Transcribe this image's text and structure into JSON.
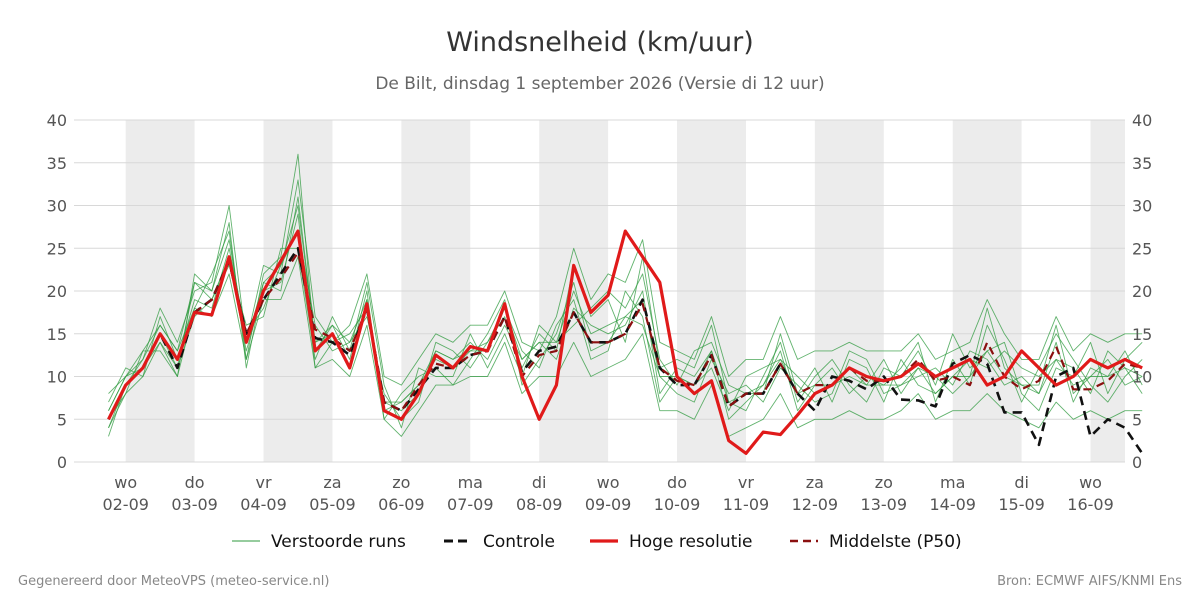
{
  "title": "Windsnelheid (km/uur)",
  "subtitle": "De Bilt, dinsdag  1 september 2026 (Versie di 12 uur)",
  "footer": {
    "left": "Gegenereerd door MeteoVPS (meteo-service.nl)",
    "right": "Bron: ECMWF AIFS/KNMI Ens"
  },
  "colors": {
    "ensemble": "#2e9a3e",
    "control": "#111111",
    "high_res": "#e01a1a",
    "median": "#8b1010",
    "band": "#ececec",
    "grid": "#d8d8d8"
  },
  "chart_data": {
    "type": "line",
    "ylim": [
      0,
      40
    ],
    "yticks": [
      0,
      5,
      10,
      15,
      20,
      25,
      30,
      35,
      40
    ],
    "xlim": [
      -0.75,
      14.5
    ],
    "day_labels": [
      {
        "day": "wo",
        "date": "02-09",
        "x": 0
      },
      {
        "day": "do",
        "date": "03-09",
        "x": 1
      },
      {
        "day": "vr",
        "date": "04-09",
        "x": 2
      },
      {
        "day": "za",
        "date": "05-09",
        "x": 3
      },
      {
        "day": "zo",
        "date": "06-09",
        "x": 4
      },
      {
        "day": "ma",
        "date": "07-09",
        "x": 5
      },
      {
        "day": "di",
        "date": "08-09",
        "x": 6
      },
      {
        "day": "wo",
        "date": "09-09",
        "x": 7
      },
      {
        "day": "do",
        "date": "10-09",
        "x": 8
      },
      {
        "day": "vr",
        "date": "11-09",
        "x": 9
      },
      {
        "day": "za",
        "date": "12-09",
        "x": 10
      },
      {
        "day": "zo",
        "date": "13-09",
        "x": 11
      },
      {
        "day": "ma",
        "date": "14-09",
        "x": 12
      },
      {
        "day": "di",
        "date": "15-09",
        "x": 13
      },
      {
        "day": "wo",
        "date": "16-09",
        "x": 14
      }
    ],
    "shaded_days": [
      [
        0,
        1
      ],
      [
        2,
        3
      ],
      [
        4,
        5
      ],
      [
        6,
        7
      ],
      [
        8,
        9
      ],
      [
        10,
        11
      ],
      [
        12,
        13
      ],
      [
        14,
        14.5
      ]
    ],
    "legend": [
      {
        "key": "ensemble",
        "label": "Verstoorde runs"
      },
      {
        "key": "control",
        "label": "Controle"
      },
      {
        "key": "high_res",
        "label": "Hoge resolutie"
      },
      {
        "key": "median",
        "label": "Middelste (P50)"
      }
    ],
    "series": [
      {
        "key": "high_res",
        "name": "Hoge resolutie",
        "x_start": -0.25,
        "x_step": 0.25,
        "values": [
          5,
          9,
          11,
          15,
          12,
          17.5,
          17.2,
          24,
          14,
          20,
          23.5,
          27,
          13,
          15,
          11,
          18.5,
          6,
          5,
          8,
          12.5,
          11,
          13.5,
          13,
          18.5,
          10,
          5,
          9,
          23,
          17.5,
          19.5,
          27,
          24,
          21,
          10,
          8,
          9.5,
          2.5,
          1,
          3.5,
          3.2,
          5.5,
          8,
          9,
          11,
          10,
          9.5,
          10,
          11.5,
          10,
          11,
          12,
          9,
          10,
          13,
          11,
          9,
          10,
          12,
          11,
          12,
          11
        ]
      },
      {
        "key": "control",
        "name": "Controle",
        "x_start": -0.25,
        "x_step": 0.25,
        "values": [
          5,
          9,
          11,
          15,
          11,
          17.5,
          19,
          23.5,
          15,
          19,
          22,
          25,
          14.5,
          14,
          12.5,
          18,
          7,
          6,
          8.5,
          11,
          11,
          12.5,
          13,
          17,
          10.5,
          13,
          13.5,
          17.5,
          14,
          14,
          15,
          19,
          11,
          9,
          9,
          12.5,
          6.5,
          8,
          8,
          11.5,
          8,
          6,
          10,
          9.5,
          8.5,
          10,
          7.3,
          7.2,
          6.5,
          11.5,
          12.5,
          11.5,
          5.8,
          5.8,
          2,
          10,
          11,
          3,
          5,
          4,
          1
        ]
      },
      {
        "key": "median",
        "name": "Middelste (P50)",
        "x_start": -0.25,
        "x_step": 0.25,
        "values": [
          5,
          9,
          11,
          15,
          12,
          17.5,
          19,
          23.5,
          15,
          19,
          21.5,
          24.5,
          15.5,
          14.5,
          13,
          18,
          7,
          6,
          9,
          11.5,
          11,
          12.5,
          13,
          17,
          10,
          12.5,
          13,
          17.5,
          14,
          14,
          15,
          18.5,
          11,
          9.5,
          9,
          12.5,
          6.5,
          8,
          8,
          11.5,
          8,
          9,
          9,
          11,
          9.5,
          9.5,
          10,
          12,
          9.5,
          10,
          9,
          14,
          10,
          8.5,
          9.5,
          13.5,
          8.5,
          8.5,
          9.5,
          11.5,
          11
        ]
      }
    ],
    "ensemble": {
      "name": "Verstoorde runs",
      "x_start": -0.25,
      "x_step": 0.25,
      "members": [
        [
          6,
          10,
          11,
          14,
          11,
          21,
          19,
          24,
          13,
          20,
          21,
          29,
          11,
          14,
          15,
          18,
          7,
          6,
          8,
          13,
          12,
          14,
          12,
          16,
          12,
          14,
          12,
          18,
          16,
          15,
          16,
          20,
          8,
          11,
          10,
          13,
          5,
          7,
          9,
          13,
          6,
          9,
          11,
          8,
          10,
          9,
          11,
          14,
          7,
          12,
          9,
          16,
          12,
          7,
          11,
          15,
          12,
          9,
          7,
          10,
          12
        ],
        [
          4,
          9,
          12,
          16,
          13,
          18,
          22,
          27,
          12,
          22,
          24,
          36,
          13,
          16,
          12,
          20,
          5,
          8,
          10,
          11,
          9,
          12,
          15,
          19,
          9,
          12,
          15,
          21,
          13,
          14,
          17,
          16,
          10,
          8,
          7,
          12,
          8,
          9,
          7,
          11,
          9,
          7,
          8,
          13,
          12,
          8,
          9,
          10,
          11,
          9,
          13,
          12,
          9,
          10,
          8,
          14,
          7,
          11,
          10,
          13,
          9
        ],
        [
          7,
          11,
          10,
          17,
          12,
          19,
          18,
          25,
          15,
          18,
          23,
          27,
          16,
          13,
          14,
          17,
          8,
          5,
          7,
          14,
          13,
          11,
          14,
          17,
          11,
          15,
          13,
          23,
          17,
          19,
          14,
          24,
          11,
          12,
          11,
          16,
          7,
          6,
          10,
          14,
          7,
          10,
          12,
          9,
          7,
          11,
          10,
          13,
          9,
          15,
          11,
          13,
          14,
          8,
          6,
          11,
          10,
          14,
          8,
          12,
          14
        ],
        [
          5,
          8,
          13,
          13,
          10,
          22,
          20,
          28,
          11,
          21,
          20,
          31,
          14,
          15,
          11,
          19,
          6,
          7,
          9,
          12,
          11,
          13,
          13,
          18,
          13,
          11,
          16,
          19,
          12,
          13,
          20,
          17,
          7,
          10,
          9,
          11,
          6,
          10,
          11,
          12,
          10,
          8,
          9,
          11,
          9,
          12,
          8,
          11,
          10,
          8,
          10,
          18,
          11,
          9,
          9,
          16,
          8,
          10,
          12,
          9,
          10
        ],
        [
          3,
          9,
          11,
          15,
          11,
          17,
          19,
          23,
          16,
          17,
          25,
          25,
          12,
          17,
          13,
          21,
          9,
          4,
          11,
          10,
          10,
          15,
          11,
          15,
          10,
          16,
          14,
          16,
          18,
          20,
          18,
          22,
          12,
          9,
          13,
          14,
          9,
          8,
          8,
          15,
          8,
          11,
          7,
          12,
          11,
          7,
          12,
          9,
          8,
          10,
          12,
          11,
          13,
          11,
          10,
          12,
          11,
          8,
          13,
          11,
          8
        ],
        [
          8,
          10,
          12,
          18,
          14,
          20,
          21,
          30,
          14,
          23,
          22,
          33,
          17,
          14,
          16,
          22,
          10,
          9,
          12,
          15,
          14,
          16,
          16,
          20,
          14,
          13,
          17,
          25,
          19,
          22,
          21,
          26,
          14,
          13,
          12,
          17,
          10,
          12,
          12,
          17,
          12,
          13,
          13,
          14,
          13,
          13,
          13,
          15,
          12,
          13,
          14,
          19,
          15,
          12,
          12,
          17,
          13,
          15,
          14,
          15,
          15
        ],
        [
          4,
          8,
          10,
          14,
          10,
          18,
          17,
          22,
          12,
          19,
          19,
          24,
          11,
          12,
          10,
          16,
          5,
          3,
          6,
          9,
          9,
          10,
          10,
          14,
          8,
          10,
          10,
          14,
          10,
          11,
          12,
          15,
          6,
          6,
          5,
          9,
          3,
          4,
          5,
          8,
          4,
          5,
          5,
          6,
          5,
          5,
          6,
          8,
          5,
          6,
          6,
          8,
          6,
          5,
          4,
          7,
          5,
          6,
          5,
          6,
          6
        ],
        [
          6,
          10,
          13,
          16,
          13,
          21,
          20,
          26,
          14,
          21,
          23,
          30,
          14,
          16,
          14,
          19,
          7,
          7,
          9,
          13,
          12,
          13,
          14,
          18,
          12,
          14,
          14,
          20,
          15,
          16,
          17,
          19,
          10,
          10,
          9,
          13,
          7,
          8,
          9,
          12,
          8,
          9,
          9,
          10,
          9,
          9,
          9,
          11,
          8,
          10,
          10,
          13,
          10,
          9,
          8,
          12,
          9,
          10,
          10,
          11,
          10
        ]
      ]
    }
  }
}
